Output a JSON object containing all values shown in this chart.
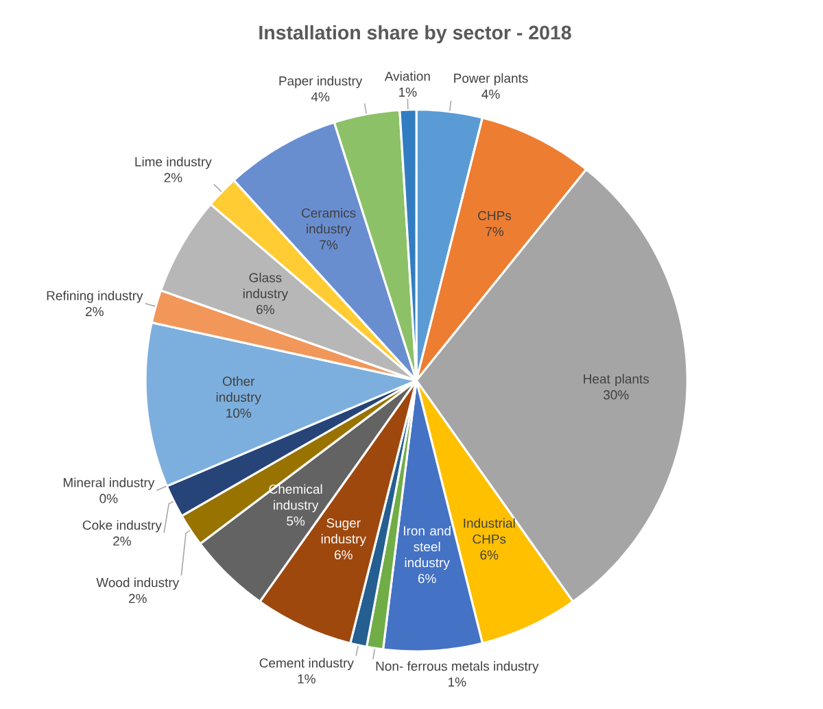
{
  "chart_data": {
    "type": "pie",
    "title": "Installation share by sector - 2018",
    "categories": [
      "Power plants",
      "CHPs",
      "Heat plants",
      "Industrial CHPs",
      "Iron and steel industry",
      "Non- ferrous metals industry",
      "Cement industry",
      "Suger industry",
      "Chemical industry",
      "Wood industry",
      "Coke industry",
      "Mineral industry",
      "Other industry",
      "Refining industry",
      "Glass industry",
      "Lime industry",
      "Ceramics industry",
      "Paper industry",
      "Aviation"
    ],
    "values": [
      4,
      7,
      30,
      6,
      6,
      1,
      1,
      6,
      5,
      2,
      2,
      0,
      10,
      2,
      6,
      2,
      7,
      4,
      1
    ],
    "value_labels": [
      "4%",
      "7%",
      "30%",
      "6%",
      "6%",
      "1%",
      "1%",
      "6%",
      "5%",
      "2%",
      "2%",
      "0%",
      "10%",
      "2%",
      "6%",
      "2%",
      "7%",
      "4%",
      "1%"
    ],
    "colors": [
      "#5b9bd5",
      "#ed7d31",
      "#a5a5a5",
      "#ffc000",
      "#4472c4",
      "#70ad47",
      "#255e91",
      "#9e480e",
      "#636363",
      "#997300",
      "#264478",
      "#43682b",
      "#7cafdd",
      "#f1975a",
      "#b7b7b7",
      "#ffcd33",
      "#698ed0",
      "#8cc168",
      "#327dc2"
    ]
  }
}
